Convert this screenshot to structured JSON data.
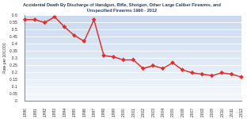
{
  "chart_data": {
    "type": "line",
    "title": [
      "Accidental Death By Discharge of Handgun, Rifle, Shotgun, Other Large Caliber Firearms, and",
      "Unspecified Firearms 1990 - 2012"
    ],
    "y_label": "Rate per 100,000",
    "categories": [
      "1990",
      "1991",
      "1992",
      "1993",
      "1994",
      "1995",
      "1996",
      "1997",
      "1998",
      "1999",
      "2000",
      "2001",
      "2002",
      "2003",
      "2004",
      "2005",
      "2006",
      "2007",
      "2008",
      "2009",
      "2010",
      "2011",
      "2012"
    ],
    "values": [
      0.57,
      0.57,
      0.55,
      0.59,
      0.52,
      0.46,
      0.42,
      0.57,
      0.32,
      0.31,
      0.29,
      0.29,
      0.23,
      0.25,
      0.23,
      0.27,
      0.22,
      0.2,
      0.19,
      0.18,
      0.2,
      0.19,
      0.17
    ],
    "color": "#e0302c",
    "marker": "diamond",
    "ylim": [
      0,
      0.6
    ],
    "yticks": [
      0,
      0.05,
      0.1,
      0.15,
      0.2,
      0.25,
      0.3,
      0.35,
      0.4,
      0.45,
      0.5,
      0.55,
      0.6
    ],
    "grid": true
  }
}
